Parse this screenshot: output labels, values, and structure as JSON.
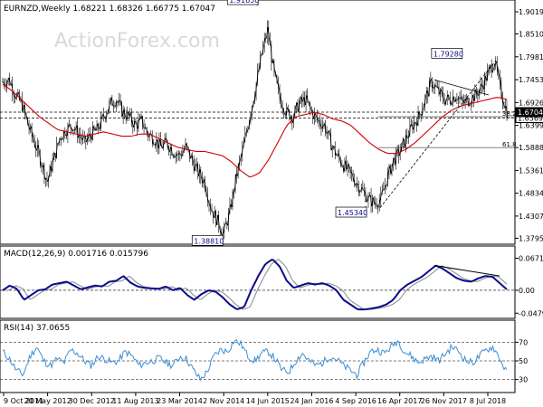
{
  "chart_data": [
    {
      "type": "candlestick",
      "title": "EURNZD,Weekly  1.68221 1.68326 1.66775 1.67047",
      "watermark": "ActionForex.com",
      "ylim": [
        1.37,
        1.925
      ],
      "y_ticks": [
        "1.90195",
        "1.85105",
        "1.79815",
        "1.74535",
        "1.69265",
        "1.63995",
        "1.58880",
        "1.53610",
        "1.48340",
        "1.43070",
        "1.37955"
      ],
      "x_labels": [
        "9 Oct 2011",
        "20 May 2012",
        "30 Dec 2012",
        "11 Aug 2013",
        "23 Mar 2014",
        "2 Nov 2014",
        "14 Jun 2015",
        "24 Jan 2016",
        "4 Sep 2016",
        "16 Apr 2017",
        "26 Nov 2017",
        "8 Jul 2018"
      ],
      "price_path": [
        1.74,
        1.745,
        1.71,
        1.69,
        1.64,
        1.6,
        1.56,
        1.51,
        1.56,
        1.61,
        1.63,
        1.64,
        1.62,
        1.6,
        1.62,
        1.63,
        1.66,
        1.69,
        1.7,
        1.67,
        1.66,
        1.64,
        1.65,
        1.62,
        1.61,
        1.59,
        1.6,
        1.58,
        1.57,
        1.59,
        1.56,
        1.53,
        1.51,
        1.45,
        1.42,
        1.39,
        1.44,
        1.52,
        1.58,
        1.65,
        1.72,
        1.8,
        1.86,
        1.76,
        1.7,
        1.67,
        1.66,
        1.69,
        1.7,
        1.67,
        1.65,
        1.64,
        1.6,
        1.57,
        1.55,
        1.53,
        1.51,
        1.49,
        1.47,
        1.46,
        1.47,
        1.52,
        1.56,
        1.58,
        1.61,
        1.64,
        1.66,
        1.7,
        1.74,
        1.72,
        1.7,
        1.7,
        1.71,
        1.69,
        1.7,
        1.71,
        1.73,
        1.76,
        1.79,
        1.72,
        1.67
      ],
      "ma_path": [
        1.735,
        1.72,
        1.7,
        1.68,
        1.66,
        1.645,
        1.63,
        1.625,
        1.62,
        1.615,
        1.62,
        1.625,
        1.62,
        1.615,
        1.615,
        1.62,
        1.62,
        1.61,
        1.6,
        1.59,
        1.585,
        1.58,
        1.58,
        1.575,
        1.57,
        1.555,
        1.535,
        1.52,
        1.53,
        1.56,
        1.6,
        1.64,
        1.66,
        1.665,
        1.67,
        1.665,
        1.655,
        1.65,
        1.64,
        1.62,
        1.6,
        1.585,
        1.575,
        1.575,
        1.585,
        1.6,
        1.62,
        1.64,
        1.66,
        1.675,
        1.685,
        1.69,
        1.695,
        1.7,
        1.705,
        1.7
      ],
      "annotations": [
        {
          "label": "1.91650",
          "x": 0.505,
          "y": 1.9165
        },
        {
          "label": "1.38810",
          "x": 0.435,
          "y": 1.3881
        },
        {
          "label": "1.45340",
          "x": 0.72,
          "y": 1.4534
        },
        {
          "label": "1.79280",
          "x": 0.91,
          "y": 1.7928
        }
      ],
      "hlines": [
        {
          "value": 1.6569,
          "style": "dashed",
          "label": "1.65690"
        },
        {
          "value": 1.67047,
          "style": "dashed",
          "label": "1.67047"
        },
        {
          "value": 1.66,
          "style": "solid",
          "label": "38.2"
        },
        {
          "value": 1.5888,
          "style": "solid",
          "label": "61.8"
        }
      ]
    },
    {
      "type": "line",
      "title": "MACD(12,26,9) 0.001716 0.015796",
      "ylim": [
        -0.055,
        0.07
      ],
      "y_ticks": [
        "0.067133",
        "0.00",
        "-0.047931"
      ],
      "macd_path": [
        0.0,
        0.01,
        0.003,
        -0.02,
        -0.01,
        0.0,
        0.002,
        0.012,
        0.015,
        0.018,
        0.01,
        0.002,
        0.006,
        0.01,
        0.008,
        0.018,
        0.02,
        0.03,
        0.016,
        0.008,
        0.005,
        0.004,
        0.003,
        0.008,
        0.0,
        0.005,
        -0.01,
        -0.02,
        -0.008,
        0.0,
        -0.003,
        -0.015,
        -0.03,
        -0.04,
        -0.035,
        0.0,
        0.03,
        0.055,
        0.065,
        0.05,
        0.02,
        0.005,
        0.01,
        0.015,
        0.012,
        0.015,
        0.01,
        0.0,
        -0.02,
        -0.03,
        -0.04,
        -0.04,
        -0.038,
        -0.035,
        -0.03,
        -0.02,
        0.0,
        0.012,
        0.02,
        0.028,
        0.04,
        0.052,
        0.045,
        0.035,
        0.025,
        0.02,
        0.018,
        0.025,
        0.03,
        0.028,
        0.015,
        0.002
      ],
      "signal_offset": 0.004
    },
    {
      "type": "line",
      "title": "RSI(14) 37.0655",
      "ylim": [
        18,
        82
      ],
      "y_ticks": [
        "70",
        "50",
        "30"
      ],
      "rsi_path": [
        60,
        52,
        40,
        35,
        55,
        65,
        50,
        45,
        52,
        48,
        62,
        58,
        50,
        45,
        55,
        52,
        48,
        50,
        60,
        55,
        45,
        48,
        50,
        53,
        48,
        45,
        55,
        52,
        40,
        30,
        38,
        55,
        62,
        60,
        72,
        68,
        55,
        50,
        58,
        60,
        52,
        40,
        38,
        50,
        58,
        50,
        45,
        48,
        55,
        52,
        45,
        40,
        35,
        48,
        60,
        62,
        58,
        65,
        72,
        60,
        55,
        48,
        52,
        55,
        50,
        58,
        65,
        60,
        50,
        48,
        55,
        62,
        65,
        52,
        37
      ]
    }
  ]
}
